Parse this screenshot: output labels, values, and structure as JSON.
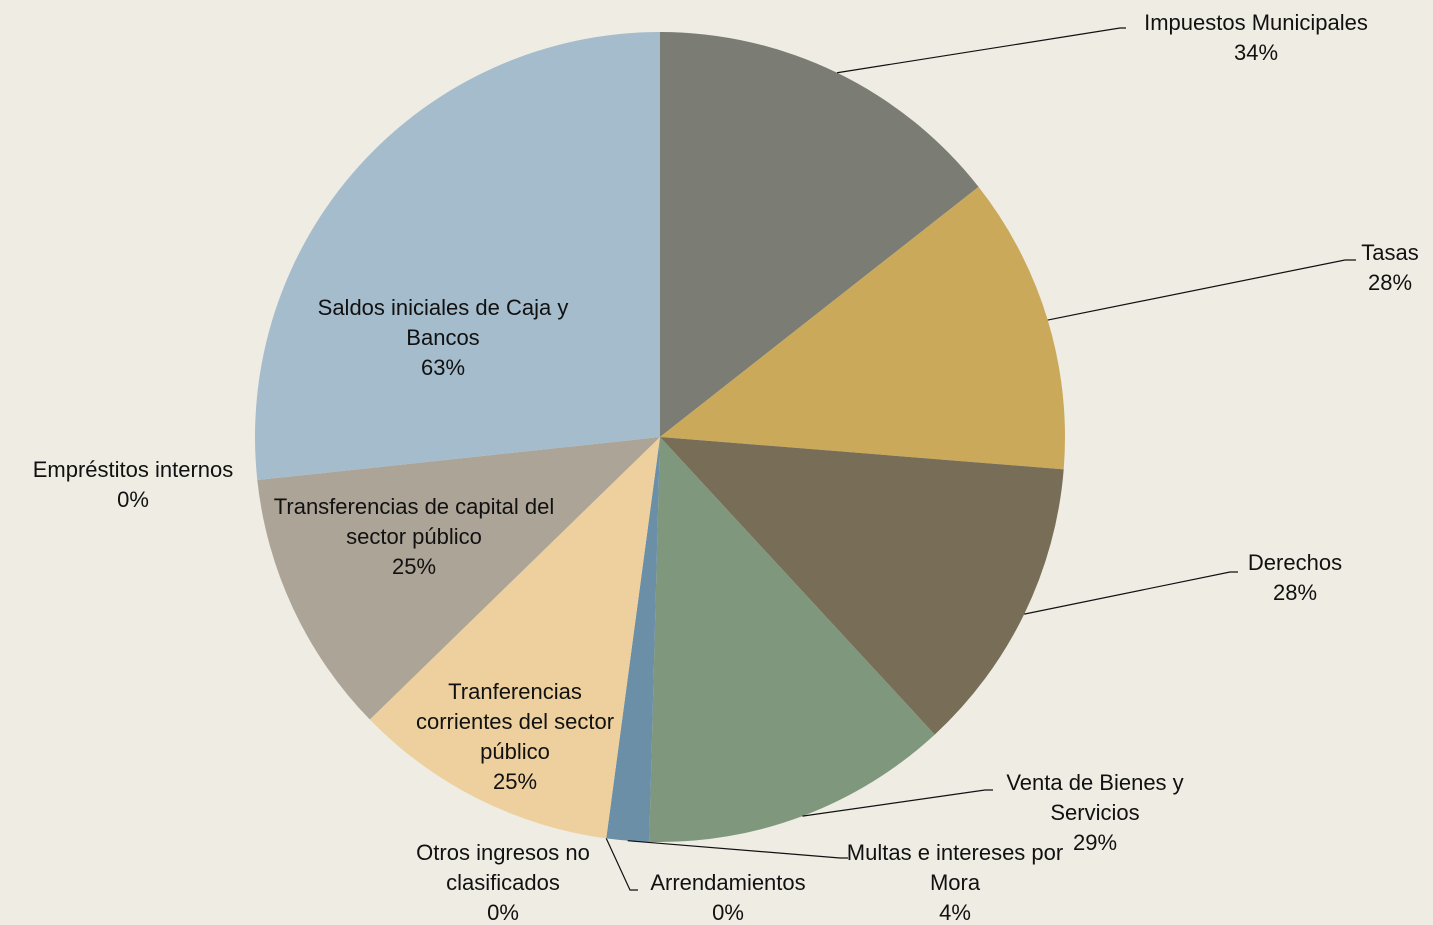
{
  "chart_data": {
    "type": "pie",
    "categories": [
      "Impuestos Municipales",
      "Tasas",
      "Derechos",
      "Venta de Bienes y Servicios",
      "Multas e intereses por Mora",
      "Arrendamientos",
      "Otros ingresos no clasificados",
      "Tranferencias corrientes del sector público",
      "Transferencias de capital del sector público",
      "Empréstitos internos",
      "Saldos iniciales de Caja y Bancos"
    ],
    "values": [
      34,
      28,
      28,
      29,
      4,
      0,
      0,
      25,
      25,
      0,
      63
    ],
    "value_labels": [
      "34%",
      "28%",
      "28%",
      "29%",
      "4%",
      "0%",
      "0%",
      "25%",
      "25%",
      "0%",
      "63%"
    ],
    "colors": [
      "#7b7c74",
      "#cba95a",
      "#786d56",
      "#7e977d",
      "#6a8fa6",
      "#5d6f7c",
      "#8a8a80",
      "#edd09d",
      "#ada498",
      "#9a9080",
      "#a4bccc"
    ]
  }
}
